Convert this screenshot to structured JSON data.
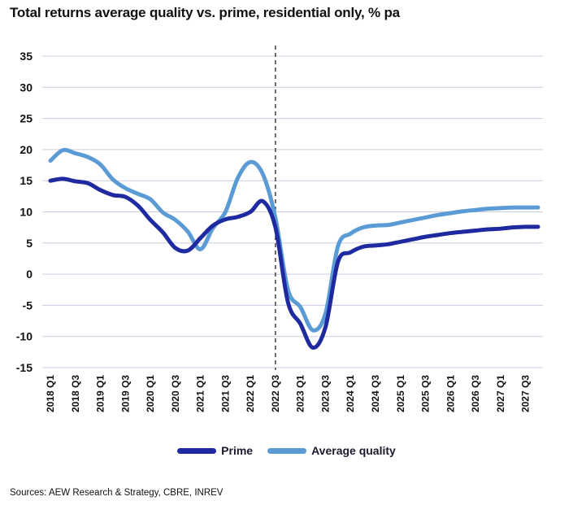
{
  "chart_data": {
    "type": "line",
    "title": "Total returns average quality vs. prime, residential only, % pa",
    "xlabel": "",
    "ylabel": "",
    "ylim": [
      -15,
      35
    ],
    "yticks": [
      35,
      30,
      25,
      20,
      15,
      10,
      5,
      0,
      -5,
      -10,
      -15
    ],
    "grid": true,
    "legend_position": "bottom",
    "categories": [
      "2018 Q1",
      "2018 Q2",
      "2018 Q3",
      "2018 Q4",
      "2019 Q1",
      "2019 Q2",
      "2019 Q3",
      "2019 Q4",
      "2020 Q1",
      "2020 Q2",
      "2020 Q3",
      "2020 Q4",
      "2021 Q1",
      "2021 Q2",
      "2021 Q3",
      "2021 Q4",
      "2022 Q1",
      "2022 Q2",
      "2022 Q3",
      "2022 Q4",
      "2023 Q1",
      "2023 Q2",
      "2023 Q3",
      "2023 Q4",
      "2024 Q1",
      "2024 Q2",
      "2024 Q3",
      "2024 Q4",
      "2025 Q1",
      "2025 Q2",
      "2025 Q3",
      "2025 Q4",
      "2026 Q1",
      "2026 Q2",
      "2026 Q3",
      "2026 Q4",
      "2027 Q1",
      "2027 Q2",
      "2027 Q3",
      "2027 Q4"
    ],
    "tick_labels": [
      "2018 Q1",
      "2018 Q3",
      "2019 Q1",
      "2019 Q3",
      "2020 Q1",
      "2020 Q3",
      "2021 Q1",
      "2021 Q3",
      "2022 Q1",
      "2022 Q3",
      "2023 Q1",
      "2023 Q3",
      "2024 Q1",
      "2024 Q3",
      "2025 Q1",
      "2025 Q3",
      "2026 Q1",
      "2026 Q3",
      "2027 Q1",
      "2027 Q3"
    ],
    "divider_at": "2022 Q3",
    "series": [
      {
        "name": "Prime",
        "color": "#1f2aa0",
        "values": [
          15.0,
          15.3,
          14.9,
          14.6,
          13.5,
          12.7,
          12.4,
          11.0,
          8.7,
          6.7,
          4.2,
          3.8,
          5.8,
          7.8,
          8.8,
          9.2,
          10.0,
          11.7,
          7.5,
          -4.5,
          -8.0,
          -11.8,
          -8.5,
          2.0,
          3.5,
          4.4,
          4.6,
          4.8,
          5.2,
          5.6,
          6.0,
          6.3,
          6.6,
          6.8,
          7.0,
          7.2,
          7.3,
          7.5,
          7.6,
          7.6
        ]
      },
      {
        "name": "Average quality",
        "color": "#5b9bd5",
        "values": [
          18.2,
          19.9,
          19.4,
          18.8,
          17.6,
          15.2,
          13.8,
          12.9,
          12.0,
          9.9,
          8.7,
          6.8,
          4.0,
          7.4,
          10.0,
          15.5,
          18.0,
          16.0,
          9.0,
          -2.5,
          -5.3,
          -9.0,
          -6.3,
          4.5,
          6.5,
          7.5,
          7.8,
          7.9,
          8.3,
          8.7,
          9.1,
          9.5,
          9.8,
          10.1,
          10.3,
          10.5,
          10.6,
          10.7,
          10.7,
          10.7
        ]
      }
    ]
  },
  "legend": {
    "prime": "Prime",
    "average": "Average quality"
  },
  "source": "Sources: AEW Research & Strategy, CBRE, INREV"
}
